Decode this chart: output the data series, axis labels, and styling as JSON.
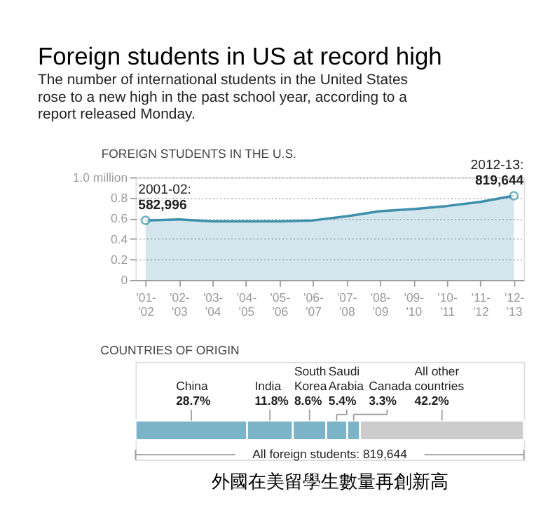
{
  "chart_data": [
    {
      "type": "area",
      "title": "Foreign students in US at record high",
      "subtitle": "The number of international students in the United States rose to a new high in the past school year, according to a report released Monday.",
      "annotations": [
        "FOREIGN STUDENTS IN THE U.S.",
        {
          "text": "2001-02: 582,996",
          "x": "'01- '02",
          "y": 0.58
        },
        {
          "text": "2012-13: 819,644",
          "x": "'12- '13",
          "y": 0.82
        }
      ],
      "categories": [
        "'01- '02",
        "'02- '03",
        "'03- '04",
        "'04- '05",
        "'05- '06",
        "'06- '07",
        "'07- '08",
        "'08- '09",
        "'09- '10",
        "'10- '11",
        "'11- '12",
        "'12- '13"
      ],
      "series": [
        {
          "color": "#3d8fab",
          "values": [
            0.58,
            0.59,
            0.57,
            0.57,
            0.57,
            0.58,
            0.62,
            0.67,
            0.69,
            0.72,
            0.76,
            0.82
          ]
        }
      ],
      "ylim": [
        0,
        1.0
      ],
      "yticks": [
        0,
        0.2,
        0.4,
        0.6,
        0.8,
        {
          "value": 1.0,
          "label": "1.0 million"
        }
      ],
      "grid": "y"
    },
    {
      "type": "bar",
      "orientation": "horizontal",
      "stacked": true,
      "title": "COUNTRIES OF ORIGIN",
      "categories": [
        null
      ],
      "series": [
        {
          "name": "China",
          "color": "#7bb3c8",
          "values": [
            28.7
          ],
          "value_labels": [
            "28.7%"
          ]
        },
        {
          "name": "India",
          "color": "#7bb3c8",
          "values": [
            11.8
          ],
          "value_labels": [
            "11.8%"
          ]
        },
        {
          "name": "South Korea",
          "color": "#7bb3c8",
          "values": [
            8.6
          ],
          "value_labels": [
            "8.6%"
          ]
        },
        {
          "name": "Saudi Arabia",
          "color": "#7bb3c8",
          "values": [
            5.4
          ],
          "value_labels": [
            "5.4%"
          ]
        },
        {
          "name": "Canada",
          "color": "#7bb3c8",
          "values": [
            3.3
          ],
          "value_labels": [
            "3.3%"
          ]
        },
        {
          "name": "All other countries",
          "color": "#cccccc",
          "values": [
            42.2
          ],
          "value_labels": [
            "42.2%"
          ]
        }
      ],
      "xlim": [
        0,
        100
      ],
      "tick_labels": false,
      "annotations": [
        "All foreign students: 819,644",
        "外國在美留學生數量再創新高"
      ]
    }
  ]
}
